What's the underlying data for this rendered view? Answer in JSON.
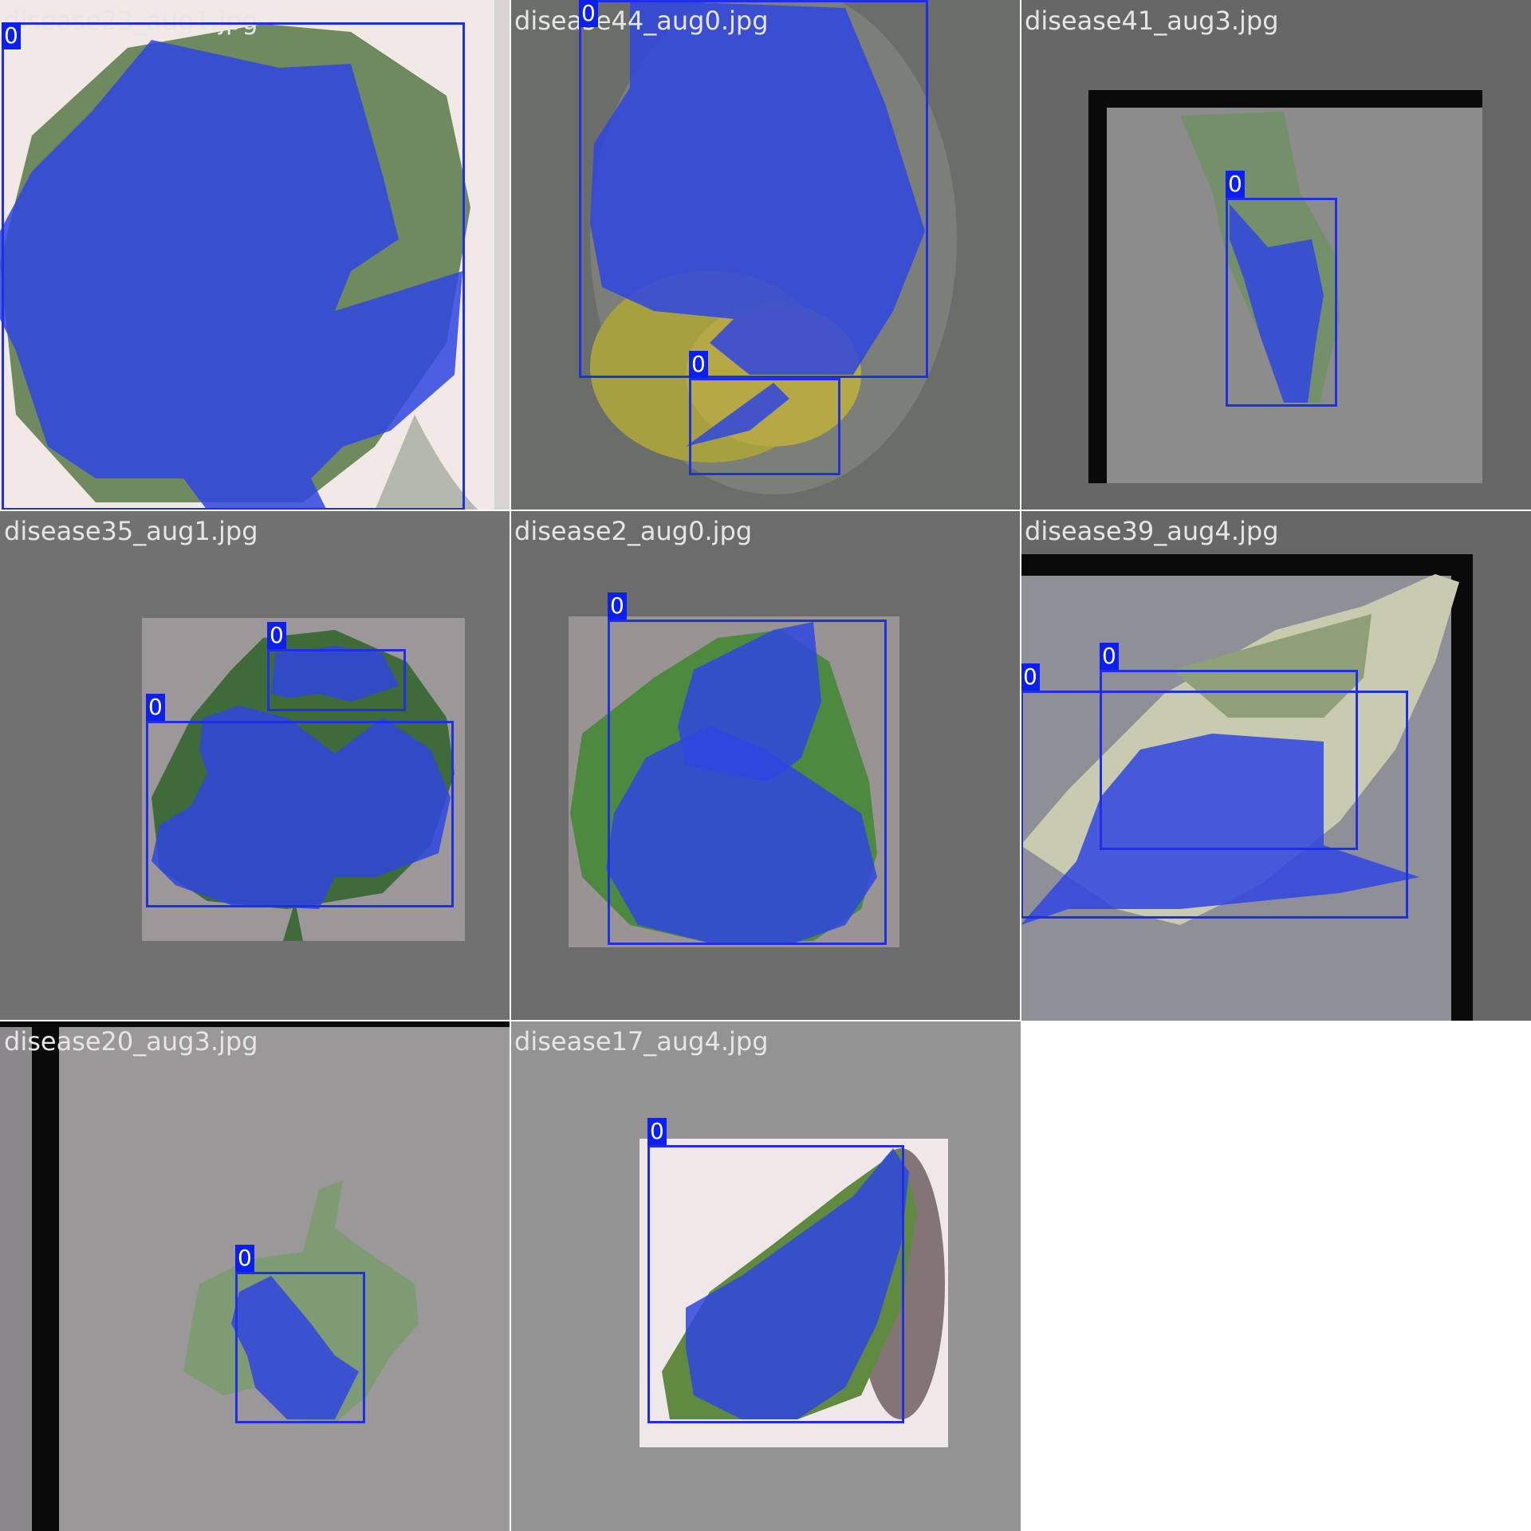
{
  "mosaic": {
    "tiles": [
      {
        "filename": "disease23_aug1.jpg",
        "labels": [
          "0"
        ]
      },
      {
        "filename": "disease44_aug0.jpg",
        "labels": [
          "0",
          "0"
        ]
      },
      {
        "filename": "disease41_aug3.jpg",
        "labels": [
          "0"
        ]
      },
      {
        "filename": "disease35_aug1.jpg",
        "labels": [
          "0",
          "0"
        ]
      },
      {
        "filename": "disease2_aug0.jpg",
        "labels": [
          "0"
        ]
      },
      {
        "filename": "disease39_aug4.jpg",
        "labels": [
          "0",
          "0"
        ]
      },
      {
        "filename": "disease20_aug3.jpg",
        "labels": [
          "0"
        ]
      },
      {
        "filename": "disease17_aug4.jpg",
        "labels": [
          "0"
        ]
      }
    ],
    "colors": {
      "mask": "#2f45e0",
      "box": "#1f2fe6",
      "label_bg": "#0a1ff0",
      "filename_text": "#e6e6e6"
    }
  }
}
